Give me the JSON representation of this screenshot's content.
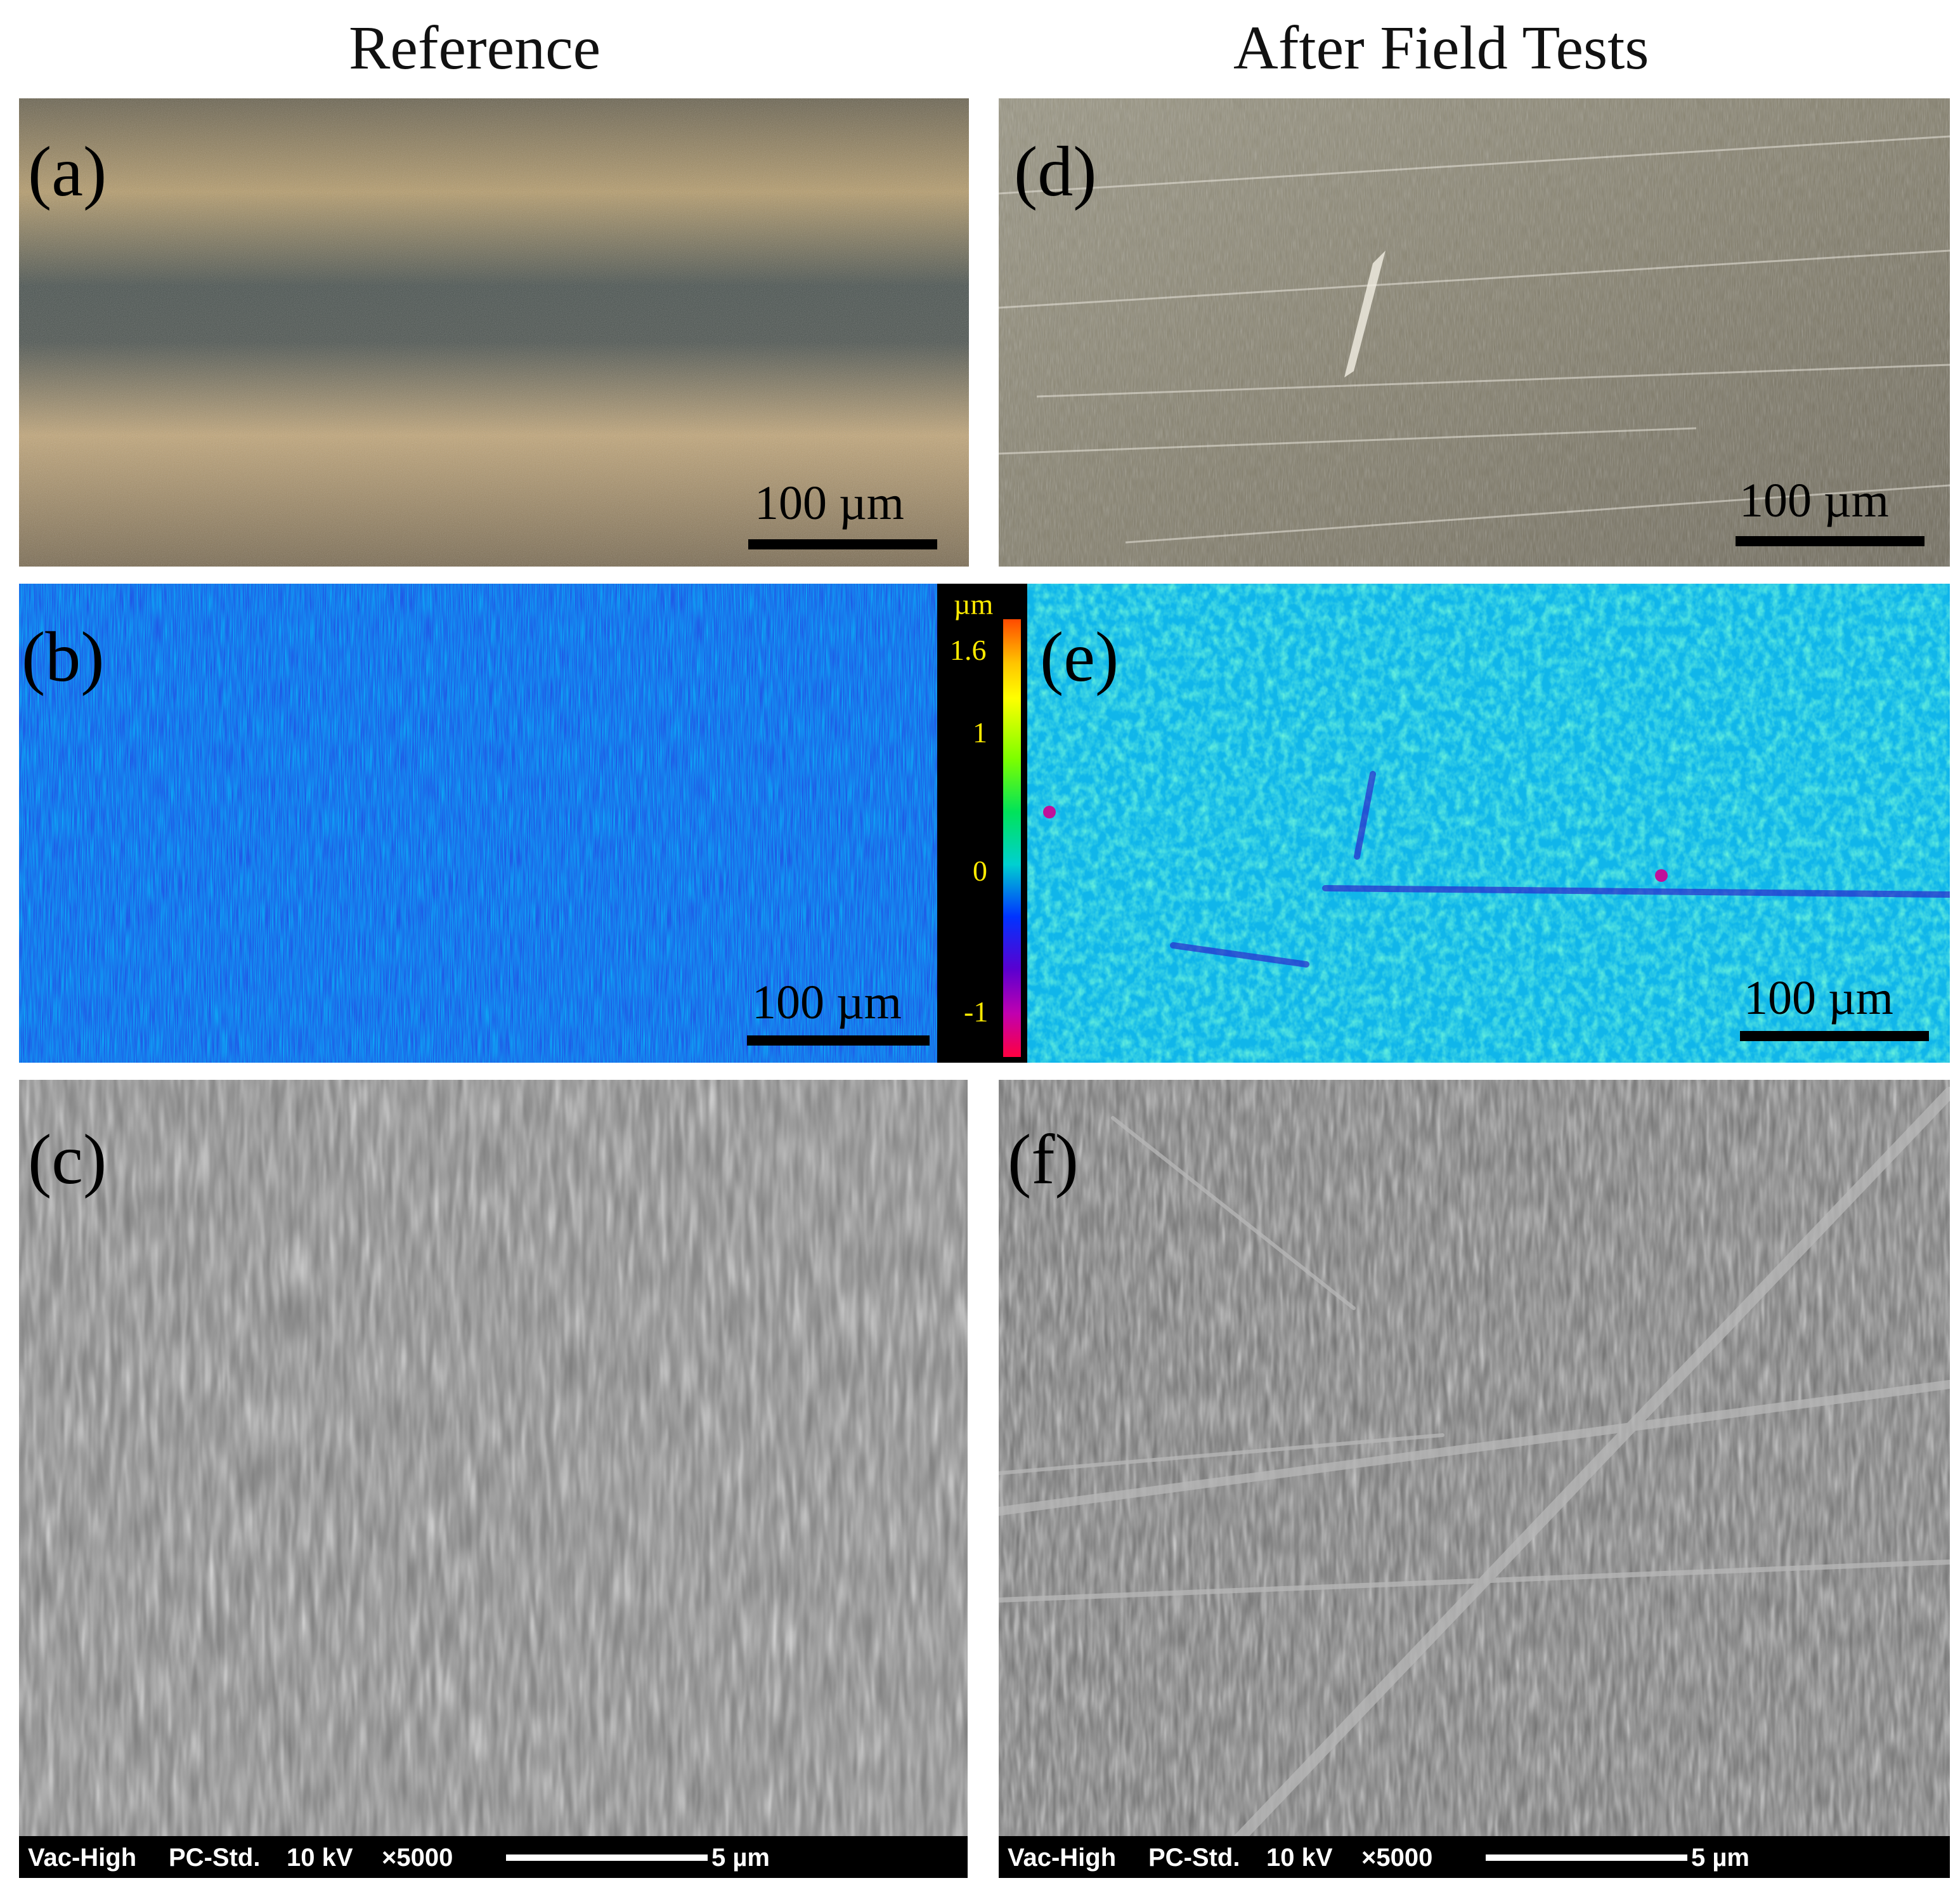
{
  "columns": {
    "left_title": "Reference",
    "right_title": "After Field Tests"
  },
  "panels": {
    "a": {
      "label": "(a)",
      "scale": "100 µm"
    },
    "b": {
      "label": "(b)",
      "scale": "100 µm"
    },
    "c": {
      "label": "(c)"
    },
    "d": {
      "label": "(d)",
      "scale": "100 µm"
    },
    "e": {
      "label": "(e)",
      "scale": "100 µm"
    },
    "f": {
      "label": "(f)"
    }
  },
  "colorbar": {
    "unit": "µm",
    "ticks": [
      "1.6",
      "1",
      "0",
      "-1"
    ]
  },
  "sem_footer": {
    "vac": "Vac-High",
    "mode": "PC-Std.",
    "kv": "10 kV",
    "mag": "×5000",
    "scale": "5 µm"
  }
}
